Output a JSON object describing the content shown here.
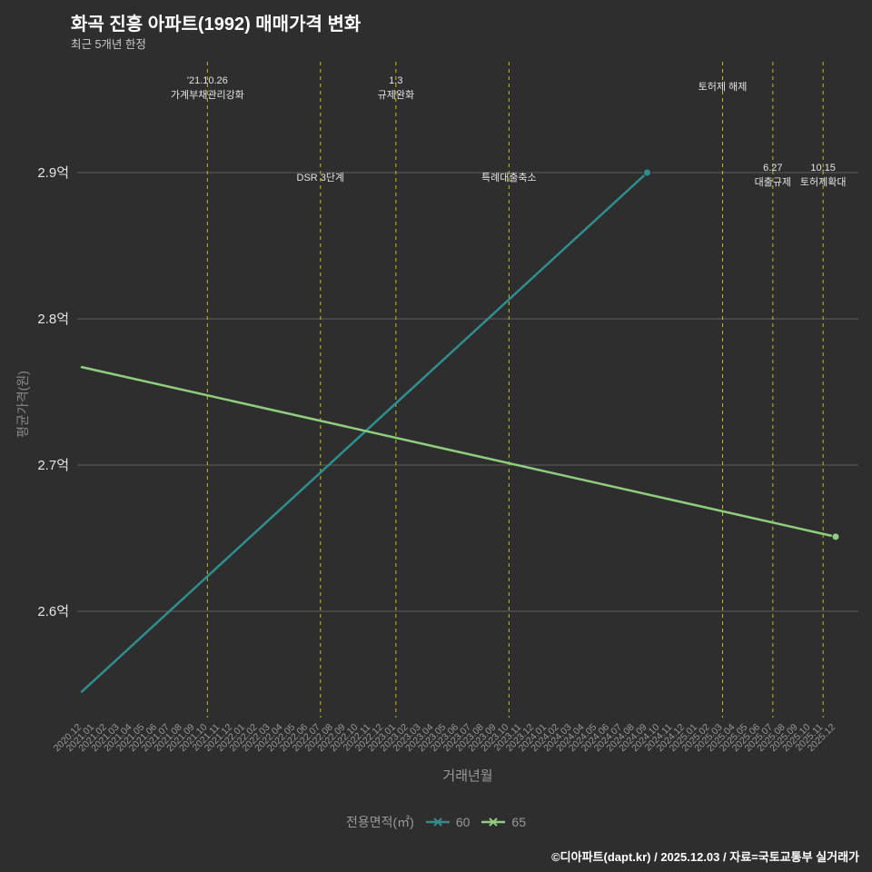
{
  "title": "화곡 진흥 아파트(1992) 매매가격 변화",
  "subtitle": "최근 5개년 한정",
  "footer": "©디아파트(dapt.kr) / 2025.12.03 / 자료=국토교통부 실거래가",
  "axes": {
    "x_label": "거래년월",
    "y_label": "평균가격(원)"
  },
  "legend": {
    "title": "전용면적(㎡)"
  },
  "chart_data": {
    "type": "line",
    "title": "화곡 진흥 아파트(1992) 매매가격 변화",
    "xlabel": "거래년월",
    "ylabel": "평균가격(원)",
    "background_color": "#2e2e2e",
    "grid_color": "#5e5e5e",
    "event_line_color": "#bdbd1f",
    "y_ticks": [
      {
        "value": 2.6,
        "label": "2.6억"
      },
      {
        "value": 2.7,
        "label": "2.7억"
      },
      {
        "value": 2.8,
        "label": "2.8억"
      },
      {
        "value": 2.9,
        "label": "2.9억"
      }
    ],
    "y_range": [
      2.52,
      2.975
    ],
    "x_categories": [
      "2020.12",
      "2021.01",
      "2021.02",
      "2021.03",
      "2021.04",
      "2021.05",
      "2021.06",
      "2021.07",
      "2021.08",
      "2021.09",
      "2021.10",
      "2021.11",
      "2021.12",
      "2022.01",
      "2022.02",
      "2022.03",
      "2022.04",
      "2022.05",
      "2022.06",
      "2022.07",
      "2022.08",
      "2022.09",
      "2022.10",
      "2022.11",
      "2022.12",
      "2023.01",
      "2023.02",
      "2023.03",
      "2023.04",
      "2023.05",
      "2023.06",
      "2023.07",
      "2023.08",
      "2023.09",
      "2023.10",
      "2023.11",
      "2023.12",
      "2024.01",
      "2024.02",
      "2024.03",
      "2024.04",
      "2024.05",
      "2024.06",
      "2024.07",
      "2024.08",
      "2024.09",
      "2024.10",
      "2024.11",
      "2024.12",
      "2025.01",
      "2025.02",
      "2025.03",
      "2025.04",
      "2025.05",
      "2025.06",
      "2025.07",
      "2025.08",
      "2025.09",
      "2025.10",
      "2025.11",
      "2025.12"
    ],
    "series": [
      {
        "name": "60",
        "color": "#2f8e8e",
        "points": [
          {
            "x": "2020.12",
            "y": 2.545
          },
          {
            "x": "2024.09",
            "y": 2.9
          }
        ]
      },
      {
        "name": "65",
        "color": "#8fce7f",
        "points": [
          {
            "x": "2020.12",
            "y": 2.767
          },
          {
            "x": "2025.12",
            "y": 2.651
          }
        ]
      }
    ],
    "events": [
      {
        "x": "2021.10",
        "lines": [
          "'21.10.26",
          "가계부채관리강화"
        ],
        "label_pos": "top"
      },
      {
        "x": "2022.07",
        "lines": [
          "DSR 3단계"
        ],
        "label_pos": "mid"
      },
      {
        "x": "2023.01",
        "lines": [
          "1.3",
          "규제완화"
        ],
        "label_pos": "top"
      },
      {
        "x": "2023.10",
        "lines": [
          "특례대출축소"
        ],
        "label_pos": "mid"
      },
      {
        "x": "2025.03",
        "lines": [
          "토허제 해제"
        ],
        "label_pos": "top"
      },
      {
        "x": "2025.07",
        "lines": [
          "6.27",
          "대출규제"
        ],
        "label_pos": "mid"
      },
      {
        "x": "2025.11",
        "lines": [
          "10.15",
          "토허제확대"
        ],
        "label_pos": "mid"
      }
    ]
  }
}
